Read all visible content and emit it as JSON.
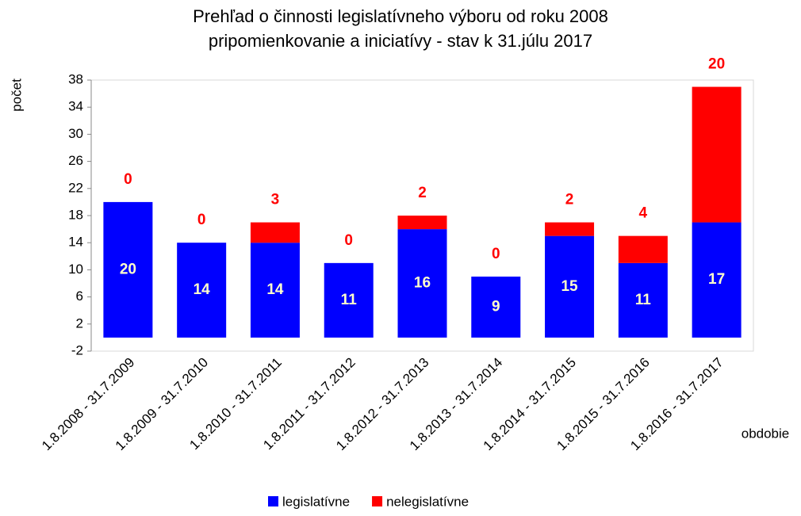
{
  "chart_data": {
    "type": "stacked_bar",
    "title": [
      "Prehľad o činnosti legislatívneho výboru od roku 2008",
      "pripomienkovanie a iniciatívy - stav k 31.júlu 2017"
    ],
    "y_label": "počet",
    "x_label": "obdobie",
    "categories": [
      "1.8.2008 - 31.7.2009",
      "1.8.2009 - 31.7.2010",
      "1.8.2010 - 31.7.2011",
      "1.8.2011 - 31.7.2012",
      "1.8.2012 - 31.7.2013",
      "1.8.2013 - 31.7.2014",
      "1.8.2014 - 31.7.2015",
      "1.8.2015 - 31.7.2016",
      "1.8.2016 - 31.7.2017"
    ],
    "series": [
      {
        "name": "legislatívne",
        "color": "#0000ff",
        "label_color": "#ffffcc",
        "values": [
          20,
          14,
          14,
          11,
          16,
          9,
          15,
          11,
          17
        ]
      },
      {
        "name": "nelegislatívne",
        "color": "#ff0000",
        "label_color": "#ff0000",
        "values": [
          0,
          0,
          3,
          0,
          2,
          0,
          2,
          4,
          20
        ]
      }
    ],
    "ylim": [
      -2,
      38
    ],
    "yticks": [
      -2,
      2,
      6,
      10,
      14,
      18,
      22,
      26,
      30,
      34,
      38
    ],
    "legend": "bottom"
  }
}
